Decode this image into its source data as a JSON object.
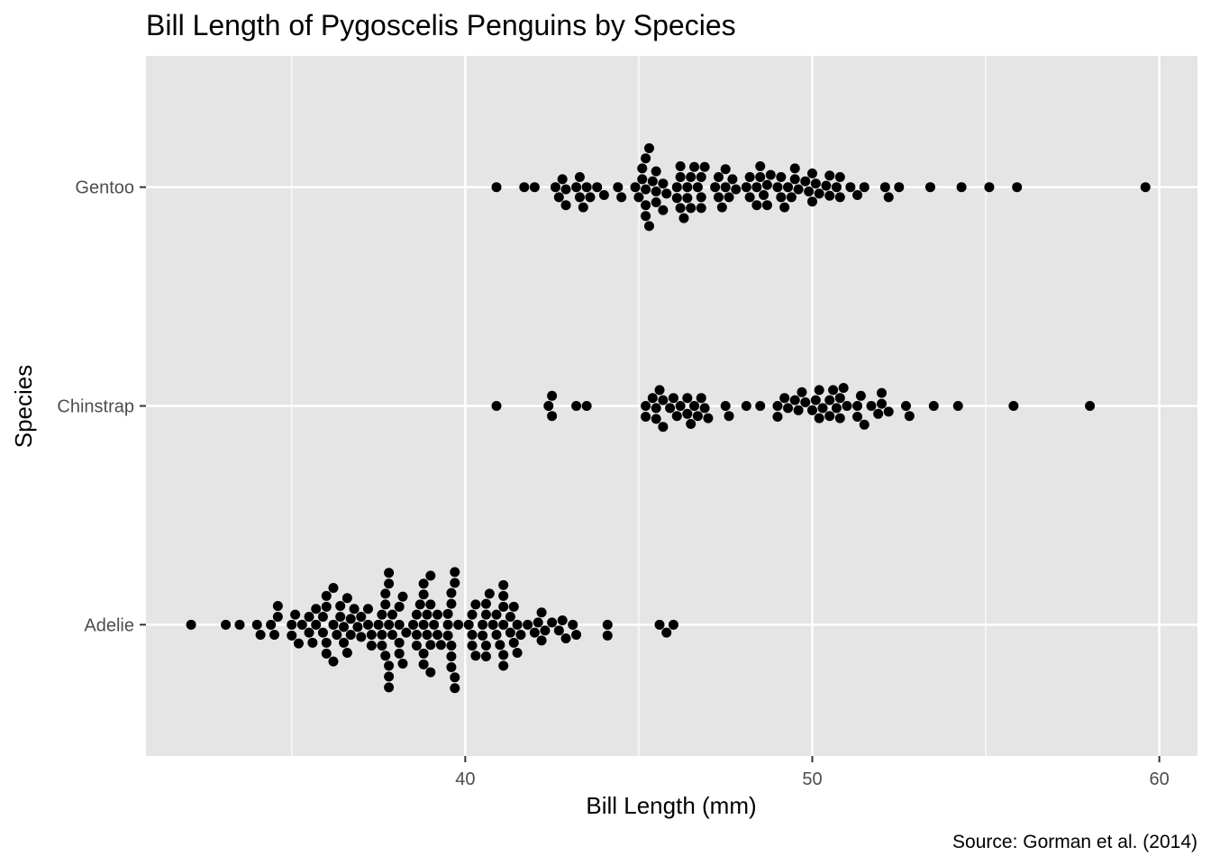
{
  "chart_data": {
    "type": "scatter",
    "subtype": "beeswarm",
    "title": "Bill Length of Pygoscelis Penguins by Species",
    "xlabel": "Bill Length (mm)",
    "ylabel": "Species",
    "caption": "Source: Gorman et al. (2014)",
    "xlim": [
      30.8,
      61.1
    ],
    "x_ticks": [
      40,
      50,
      60
    ],
    "categories": [
      "Adelie",
      "Chinstrap",
      "Gentoo"
    ],
    "grid": true,
    "panel_background": "#e5e5e5",
    "point_color": "#000000",
    "series": [
      {
        "category": "Adelie",
        "values": [
          32.1,
          33.1,
          33.5,
          34.0,
          34.1,
          34.4,
          34.5,
          34.6,
          34.6,
          35.0,
          35.0,
          35.1,
          35.2,
          35.3,
          35.5,
          35.5,
          35.6,
          35.7,
          35.7,
          35.9,
          35.9,
          36.0,
          36.0,
          36.0,
          36.0,
          36.2,
          36.2,
          36.2,
          36.3,
          36.4,
          36.4,
          36.5,
          36.5,
          36.6,
          36.6,
          36.7,
          36.7,
          36.8,
          36.9,
          37.0,
          37.0,
          37.2,
          37.2,
          37.3,
          37.3,
          37.5,
          37.6,
          37.6,
          37.6,
          37.7,
          37.7,
          37.7,
          37.8,
          37.8,
          37.8,
          37.8,
          37.8,
          37.8,
          37.9,
          37.9,
          38.1,
          38.1,
          38.1,
          38.1,
          38.2,
          38.2,
          38.3,
          38.5,
          38.6,
          38.6,
          38.6,
          38.7,
          38.8,
          38.8,
          38.8,
          38.8,
          38.8,
          38.9,
          38.9,
          39.0,
          39.0,
          39.0,
          39.0,
          39.1,
          39.2,
          39.2,
          39.3,
          39.5,
          39.5,
          39.5,
          39.6,
          39.6,
          39.6,
          39.6,
          39.6,
          39.7,
          39.7,
          39.7,
          39.7,
          39.8,
          40.1,
          40.2,
          40.2,
          40.2,
          40.3,
          40.3,
          40.5,
          40.5,
          40.6,
          40.6,
          40.6,
          40.6,
          40.7,
          40.8,
          40.9,
          40.9,
          41.0,
          41.1,
          41.1,
          41.1,
          41.1,
          41.1,
          41.1,
          41.3,
          41.3,
          41.4,
          41.4,
          41.5,
          41.5,
          41.6,
          41.8,
          42.0,
          42.1,
          42.2,
          42.2,
          42.3,
          42.5,
          42.7,
          42.8,
          42.9,
          43.1,
          43.2,
          44.1,
          44.1,
          45.6,
          45.8,
          46.0
        ]
      },
      {
        "category": "Chinstrap",
        "values": [
          40.9,
          42.4,
          42.5,
          42.5,
          43.2,
          43.5,
          45.2,
          45.2,
          45.4,
          45.5,
          45.5,
          45.6,
          45.7,
          45.7,
          45.9,
          46.0,
          46.1,
          46.2,
          46.4,
          46.4,
          46.5,
          46.6,
          46.7,
          46.8,
          46.9,
          47.0,
          47.5,
          47.6,
          48.1,
          48.5,
          49.0,
          49.0,
          49.2,
          49.3,
          49.5,
          49.6,
          49.7,
          49.8,
          50.0,
          50.1,
          50.2,
          50.2,
          50.3,
          50.5,
          50.5,
          50.6,
          50.7,
          50.8,
          50.8,
          50.9,
          51.0,
          51.3,
          51.3,
          51.4,
          51.5,
          51.7,
          51.9,
          52.0,
          52.0,
          52.2,
          52.7,
          52.8,
          53.5,
          54.2,
          55.8,
          58.0
        ]
      },
      {
        "category": "Gentoo",
        "values": [
          40.9,
          41.7,
          42.0,
          42.6,
          42.7,
          42.8,
          42.9,
          42.9,
          43.2,
          43.3,
          43.3,
          43.4,
          43.5,
          43.6,
          43.8,
          44.0,
          44.4,
          44.5,
          44.9,
          45.0,
          45.1,
          45.1,
          45.2,
          45.2,
          45.2,
          45.2,
          45.3,
          45.3,
          45.4,
          45.5,
          45.5,
          45.5,
          45.7,
          45.7,
          45.8,
          46.1,
          46.1,
          46.2,
          46.2,
          46.2,
          46.3,
          46.4,
          46.4,
          46.5,
          46.5,
          46.6,
          46.7,
          46.8,
          46.8,
          46.8,
          46.9,
          47.2,
          47.3,
          47.3,
          47.4,
          47.5,
          47.5,
          47.6,
          47.7,
          47.8,
          48.1,
          48.2,
          48.2,
          48.4,
          48.4,
          48.5,
          48.5,
          48.6,
          48.7,
          48.7,
          48.8,
          49.0,
          49.1,
          49.1,
          49.2,
          49.3,
          49.4,
          49.5,
          49.5,
          49.6,
          49.8,
          49.9,
          50.0,
          50.0,
          50.1,
          50.2,
          50.4,
          50.5,
          50.5,
          50.7,
          50.8,
          50.8,
          51.1,
          51.3,
          51.5,
          52.1,
          52.2,
          52.5,
          53.4,
          54.3,
          55.1,
          55.9,
          59.6
        ]
      }
    ]
  }
}
